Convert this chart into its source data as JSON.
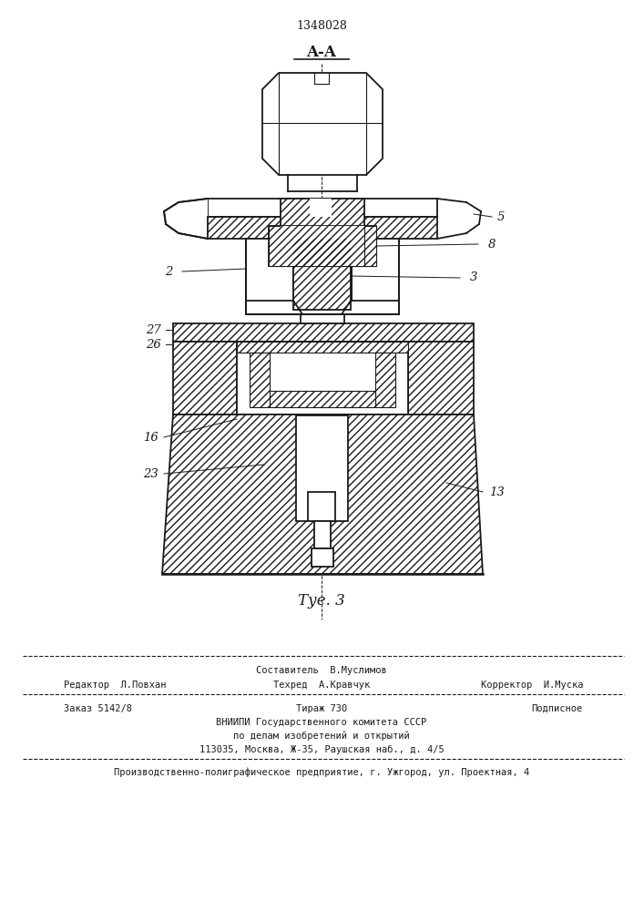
{
  "patent_number": "1348028",
  "section_label": "A-A",
  "figure_label": "Τуе. 3",
  "bg_color": "#ffffff",
  "line_color": "#1a1a1a",
  "footer_col1_line1": "Редактор  Л.Повхан",
  "footer_col2_line1": "Составитель  В.Муслимов",
  "footer_col2_line2": "Техред  А.Кравчук",
  "footer_col3_line2": "Корректор  И.Муска",
  "footer_order": "Заказ 5142/8",
  "footer_tirazh": "Тираж 730",
  "footer_podpis": "Подписное",
  "footer_vniipie": "ВНИИПИ Государственного комитета СССР",
  "footer_po_delam": "по делам изобретений и открытий",
  "footer_addr": "113035, Москва, Ж-35, Раушская наб., д. 4/5",
  "footer_last": "Производственно-полиграфическое предприятие, г. Ужгород, ул. Проектная, 4"
}
